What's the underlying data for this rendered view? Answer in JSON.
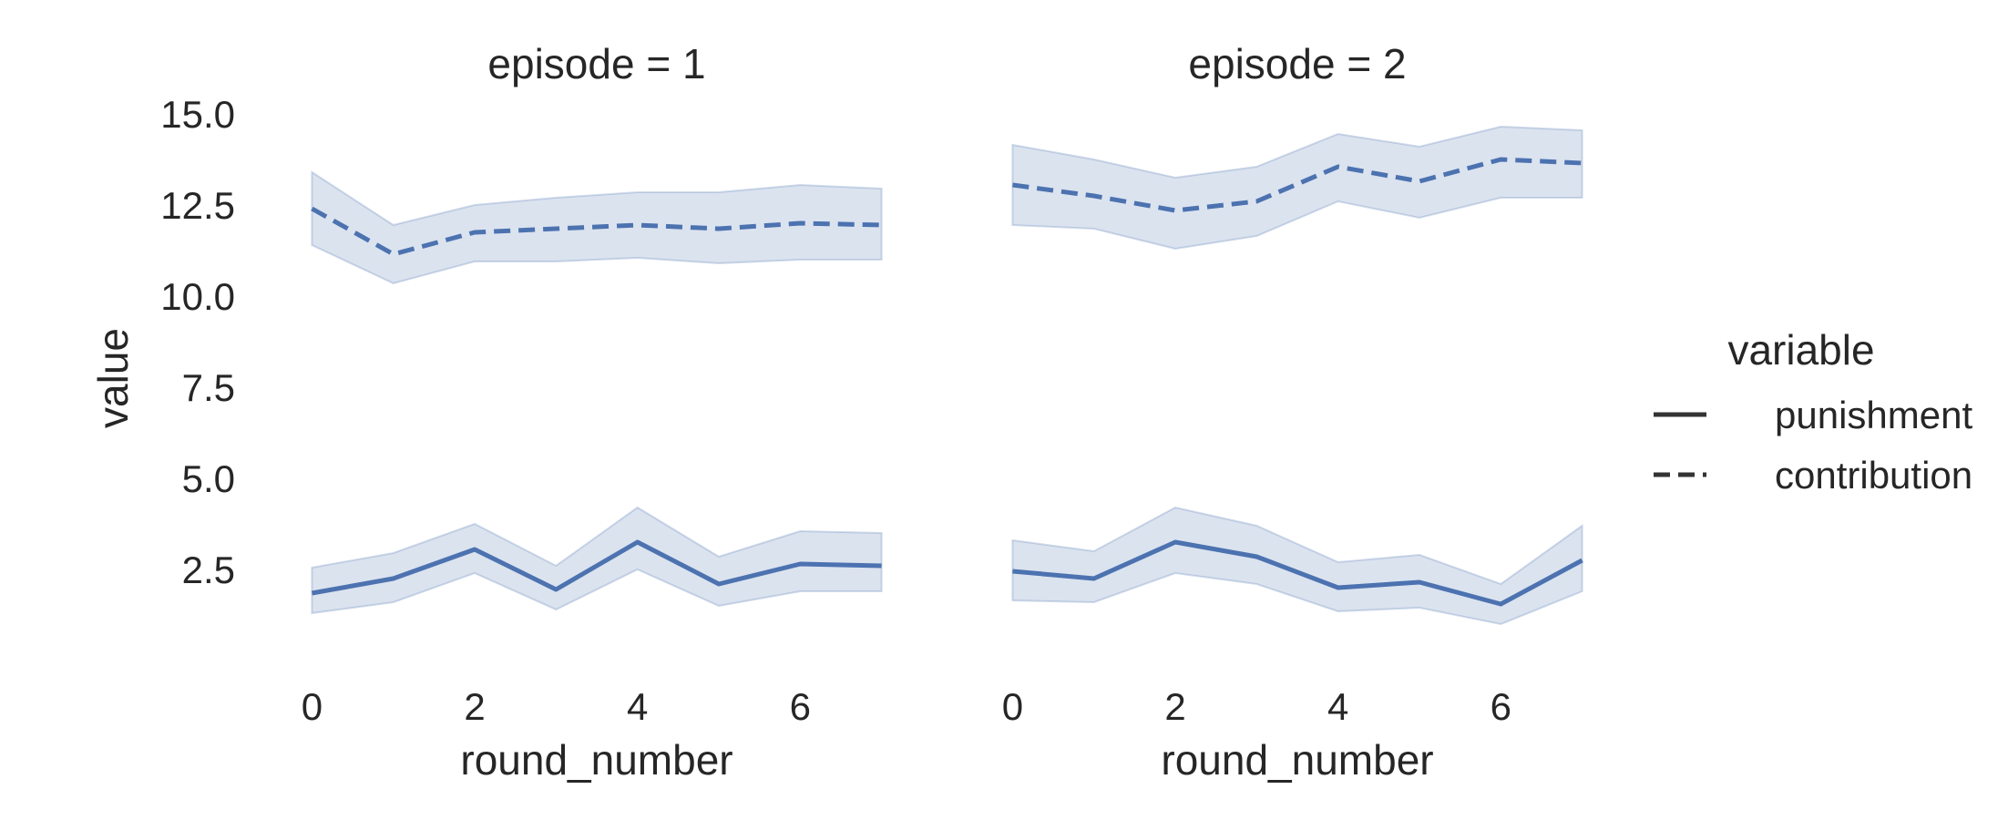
{
  "chart_data": {
    "type": "line",
    "facet_variable": "episode",
    "facets": [
      {
        "title": "episode = 1",
        "x": [
          0,
          1,
          2,
          3,
          4,
          5,
          6,
          7
        ],
        "series": [
          {
            "name": "punishment",
            "values": [
              1.85,
              2.25,
              3.05,
              1.95,
              3.25,
              2.1,
              2.65,
              2.6
            ],
            "ci_low": [
              1.3,
              1.6,
              2.4,
              1.4,
              2.5,
              1.5,
              1.9,
              1.9
            ],
            "ci_high": [
              2.55,
              2.95,
              3.75,
              2.6,
              4.2,
              2.85,
              3.55,
              3.5
            ]
          },
          {
            "name": "contribution",
            "values": [
              12.4,
              11.15,
              11.75,
              11.85,
              11.95,
              11.85,
              12.0,
              11.95
            ],
            "ci_low": [
              11.4,
              10.35,
              10.95,
              10.95,
              11.05,
              10.9,
              11.0,
              11.0
            ],
            "ci_high": [
              13.4,
              11.95,
              12.5,
              12.7,
              12.85,
              12.85,
              13.05,
              12.95
            ]
          }
        ]
      },
      {
        "title": "episode = 2",
        "x": [
          0,
          1,
          2,
          3,
          4,
          5,
          6,
          7
        ],
        "series": [
          {
            "name": "punishment",
            "values": [
              2.45,
              2.25,
              3.25,
              2.85,
              2.0,
              2.15,
              1.55,
              2.75
            ],
            "ci_low": [
              1.65,
              1.6,
              2.4,
              2.1,
              1.35,
              1.45,
              1.0,
              1.9
            ],
            "ci_high": [
              3.3,
              3.0,
              4.2,
              3.7,
              2.7,
              2.9,
              2.1,
              3.7
            ]
          },
          {
            "name": "contribution",
            "values": [
              13.05,
              12.75,
              12.35,
              12.6,
              13.55,
              13.15,
              13.75,
              13.65
            ],
            "ci_low": [
              11.95,
              11.85,
              11.3,
              11.65,
              12.6,
              12.15,
              12.7,
              12.7
            ],
            "ci_high": [
              14.15,
              13.75,
              13.25,
              13.55,
              14.45,
              14.1,
              14.65,
              14.55
            ]
          }
        ]
      }
    ],
    "xlabel": "round_number",
    "ylabel": "value",
    "xticks": [
      "0",
      "2",
      "4",
      "6"
    ],
    "yticks": [
      "2.5",
      "5.0",
      "7.5",
      "10.0",
      "12.5",
      "15.0"
    ],
    "xlim": [
      -0.15,
      7.15
    ],
    "ylim": [
      0,
      15.5
    ],
    "grid": false,
    "legend": {
      "title": "variable",
      "placement": "center-right",
      "entries": [
        {
          "name": "punishment",
          "style": "solid"
        },
        {
          "name": "contribution",
          "style": "dashed"
        }
      ]
    },
    "colors": {
      "line": "#4c72b0",
      "band": "#4c72b0",
      "text": "#262626",
      "legend_line": "#333333"
    }
  }
}
